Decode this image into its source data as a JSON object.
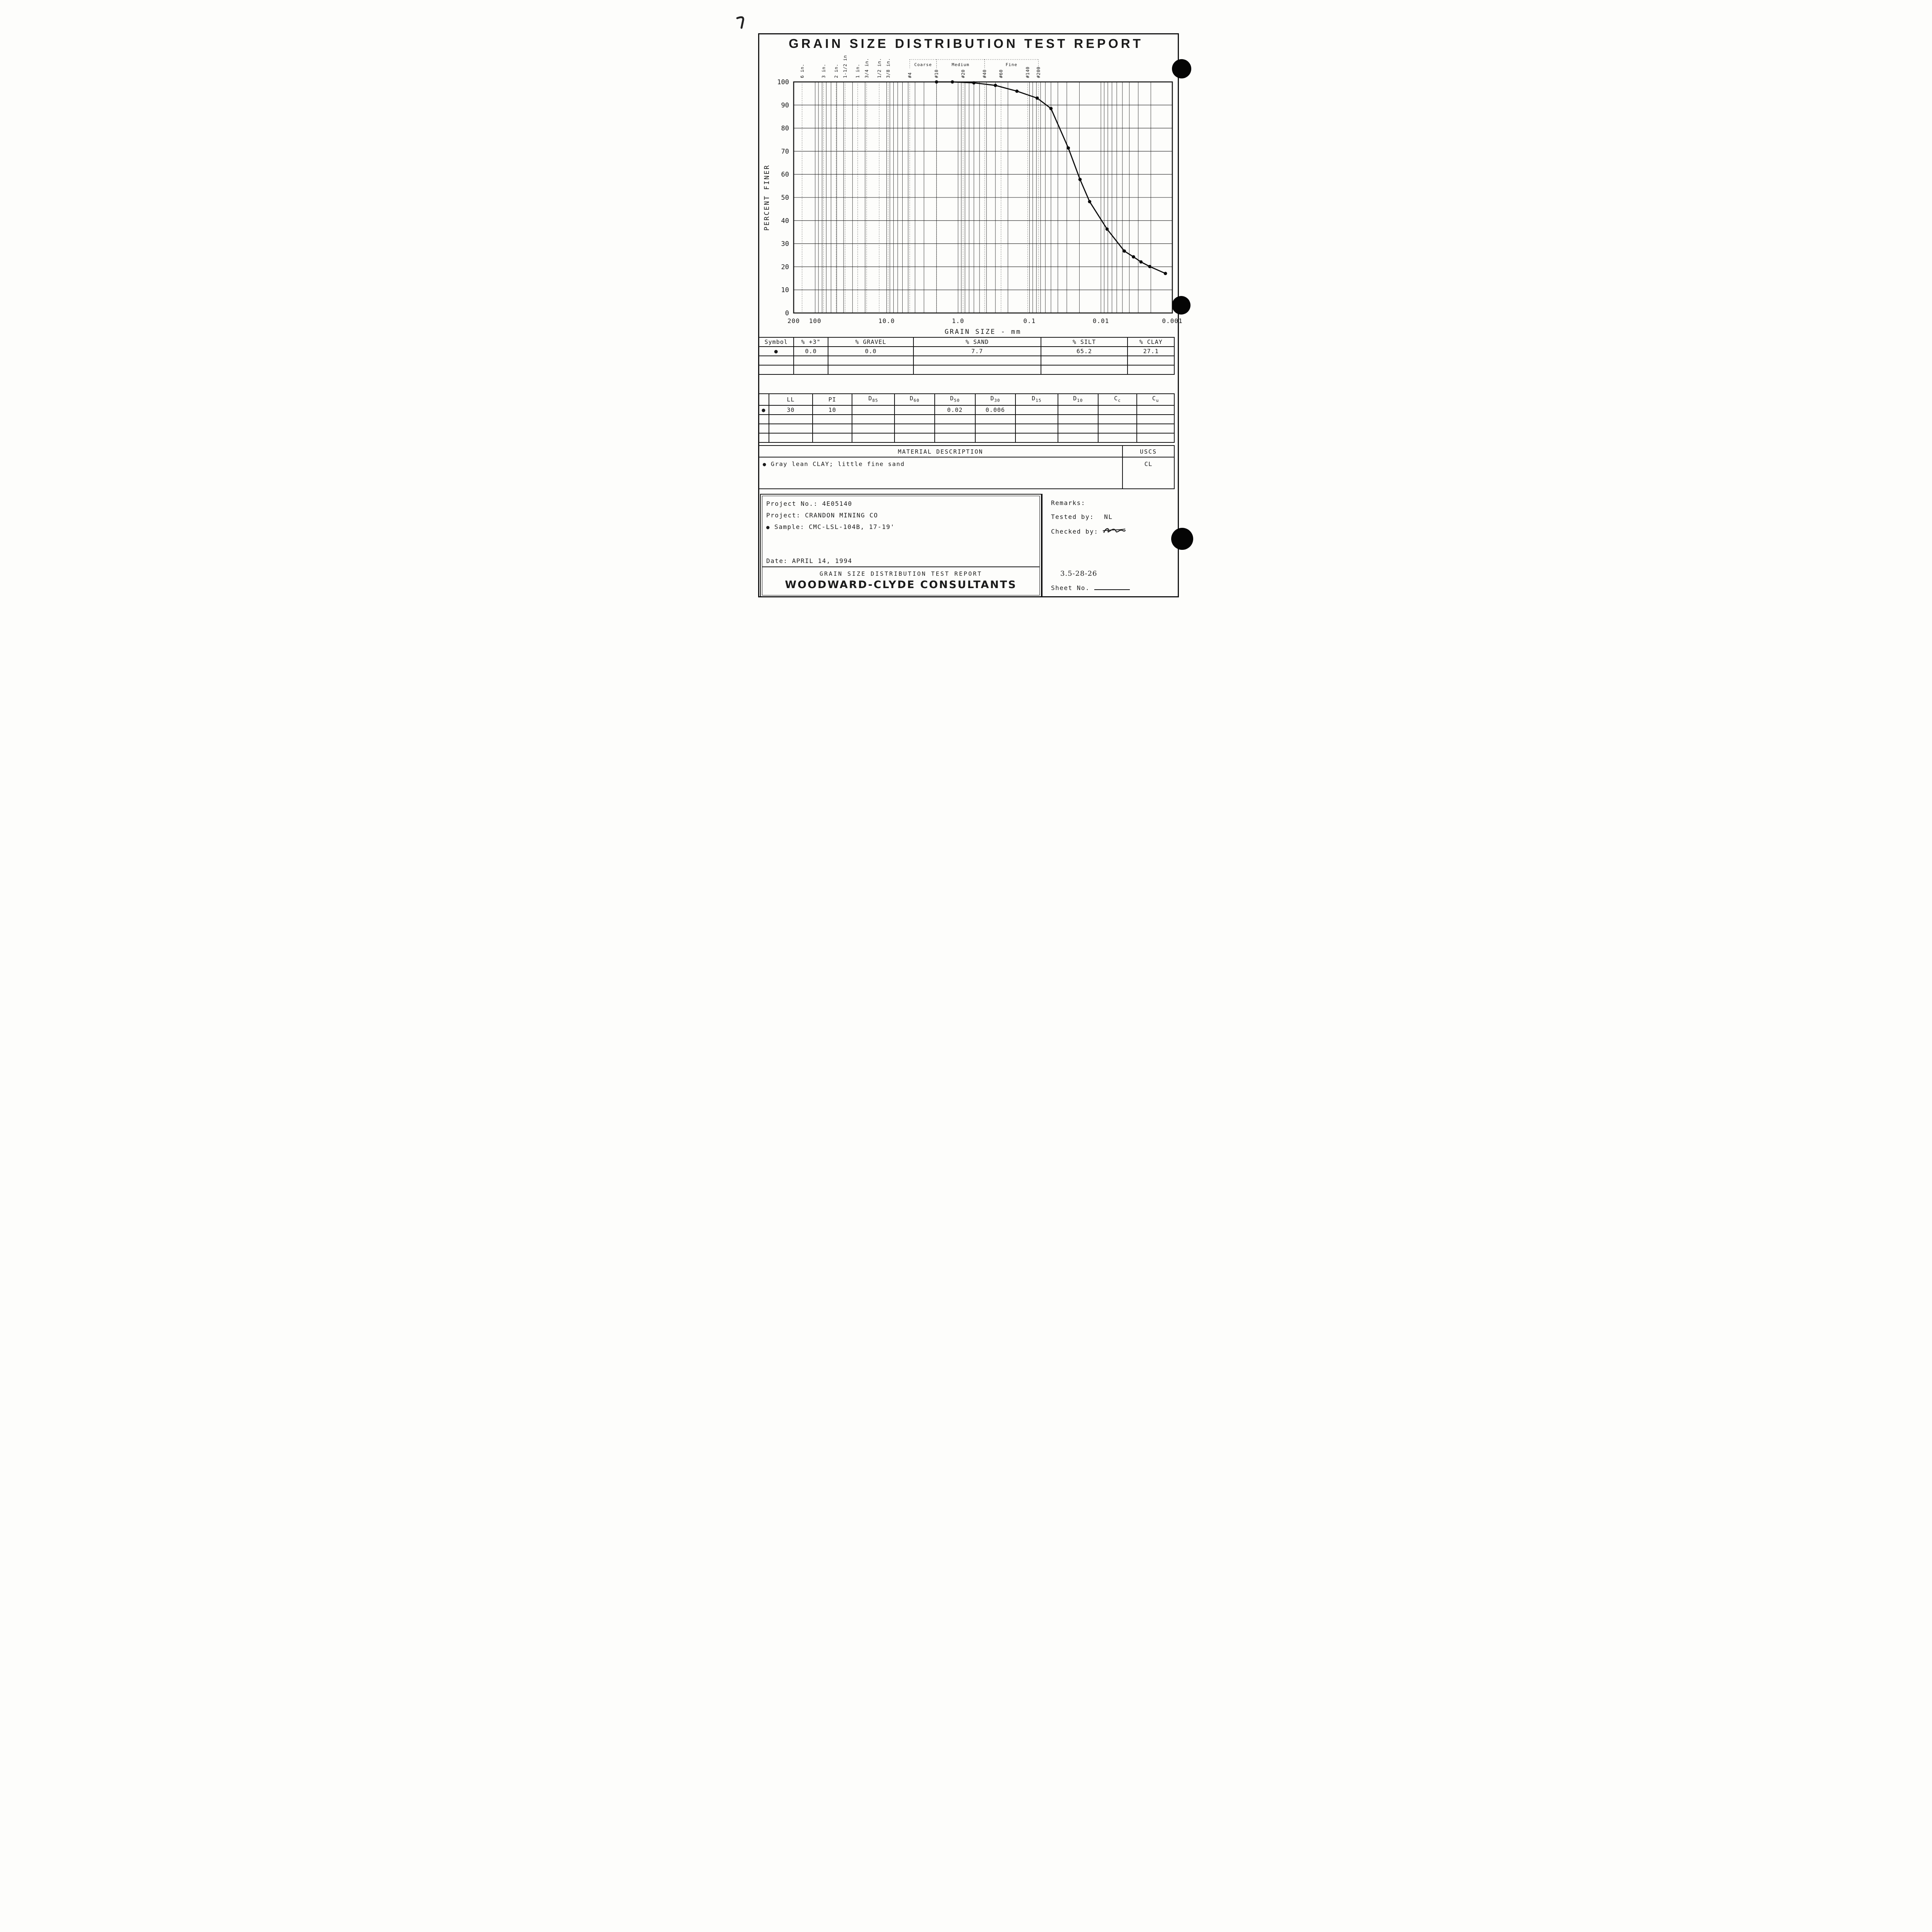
{
  "title": "GRAIN SIZE DISTRIBUTION TEST REPORT",
  "chart_data": {
    "type": "line",
    "title": "",
    "xlabel": "GRAIN SIZE - mm",
    "ylabel": "PERCENT FINER",
    "x_scale": "log",
    "x_range_mm": [
      200,
      0.001
    ],
    "x_tick_values": [
      200,
      100,
      10,
      1,
      0.1,
      0.01,
      0.001
    ],
    "x_tick_labels": [
      "200",
      "100",
      "10.0",
      "1.0",
      "0.1",
      "0.01",
      "0.001"
    ],
    "y_range": [
      0,
      100
    ],
    "y_tick_step": 10,
    "grid": true,
    "sieves": [
      {
        "label": "6 in.",
        "mm": 152.4
      },
      {
        "label": "3 in.",
        "mm": 76.2
      },
      {
        "label": "2 in.",
        "mm": 50.8
      },
      {
        "label": "1-1/2 in.",
        "mm": 38.1
      },
      {
        "label": "1 in.",
        "mm": 25.4
      },
      {
        "label": "3/4 in.",
        "mm": 19.05
      },
      {
        "label": "1/2 in.",
        "mm": 12.7
      },
      {
        "label": "3/8 in.",
        "mm": 9.525
      },
      {
        "label": "#4",
        "mm": 4.75
      },
      {
        "label": "#10",
        "mm": 2.0
      },
      {
        "label": "#20",
        "mm": 0.85
      },
      {
        "label": "#40",
        "mm": 0.425
      },
      {
        "label": "#60",
        "mm": 0.25
      },
      {
        "label": "#140",
        "mm": 0.106
      },
      {
        "label": "#200",
        "mm": 0.075
      }
    ],
    "sand_fractions": [
      {
        "label": "Coarse",
        "from_mm": 4.75,
        "to_mm": 2.0
      },
      {
        "label": "Medium",
        "from_mm": 2.0,
        "to_mm": 0.425
      },
      {
        "label": "Fine",
        "from_mm": 0.425,
        "to_mm": 0.075
      }
    ],
    "series": [
      {
        "name": "CMC-LSL-104B, 17-19'",
        "symbol": "filled-circle",
        "points_mm_pct": [
          [
            2.0,
            100
          ],
          [
            1.2,
            100
          ],
          [
            0.6,
            99.6
          ],
          [
            0.3,
            98.5
          ],
          [
            0.15,
            96
          ],
          [
            0.078,
            93
          ],
          [
            0.05,
            88.5
          ],
          [
            0.0286,
            71.4
          ],
          [
            0.0196,
            57.8
          ],
          [
            0.0144,
            48.2
          ],
          [
            0.0082,
            36.3
          ],
          [
            0.0047,
            26.8
          ],
          [
            0.0035,
            24.3
          ],
          [
            0.00275,
            22.1
          ],
          [
            0.00207,
            20.1
          ],
          [
            0.00125,
            17.1
          ]
        ]
      }
    ]
  },
  "fractions_table": {
    "headers": [
      "Symbol",
      "% +3\"",
      "% GRAVEL",
      "% SAND",
      "% SILT",
      "% CLAY"
    ],
    "rows": [
      [
        "●",
        "0.0",
        "0.0",
        "7.7",
        "65.2",
        "27.1"
      ],
      [
        "",
        "",
        "",
        "",
        "",
        ""
      ],
      [
        "",
        "",
        "",
        "",
        "",
        ""
      ]
    ]
  },
  "limits_table": {
    "headers": [
      "",
      "LL",
      "PI",
      "D85",
      "D60",
      "D50",
      "D30",
      "D15",
      "D10",
      "Cc",
      "Cu"
    ],
    "rows": [
      [
        "●",
        "30",
        "10",
        "",
        "",
        "0.02",
        "0.006",
        "",
        "",
        "",
        ""
      ],
      [
        "",
        "",
        "",
        "",
        "",
        "",
        "",
        "",
        "",
        "",
        ""
      ],
      [
        "",
        "",
        "",
        "",
        "",
        "",
        "",
        "",
        "",
        "",
        ""
      ],
      [
        "",
        "",
        "",
        "",
        "",
        "",
        "",
        "",
        "",
        "",
        ""
      ]
    ]
  },
  "material": {
    "header": "MATERIAL DESCRIPTION",
    "uscs_header": "USCS",
    "symbol": "●",
    "description": "Gray lean CLAY; little fine sand",
    "uscs_class": "CL"
  },
  "project": {
    "project_no": "Project No.: 4E05140",
    "project_name": "Project: CRANDON MINING CO",
    "sample_symbol": "●",
    "sample": "Sample: CMC-LSL-104B, 17-19'",
    "date": "Date: APRIL 14, 1994"
  },
  "remarks": {
    "title": "Remarks:",
    "tested_by_label": "Tested by:",
    "tested_by": "NL",
    "checked_by_label": "Checked by:"
  },
  "footer": {
    "report_title": "GRAIN SIZE DISTRIBUTION TEST REPORT",
    "company": "WOODWARD-CLYDE CONSULTANTS",
    "figure_no": "3.5-28-26",
    "sheet_label": "Sheet No."
  }
}
